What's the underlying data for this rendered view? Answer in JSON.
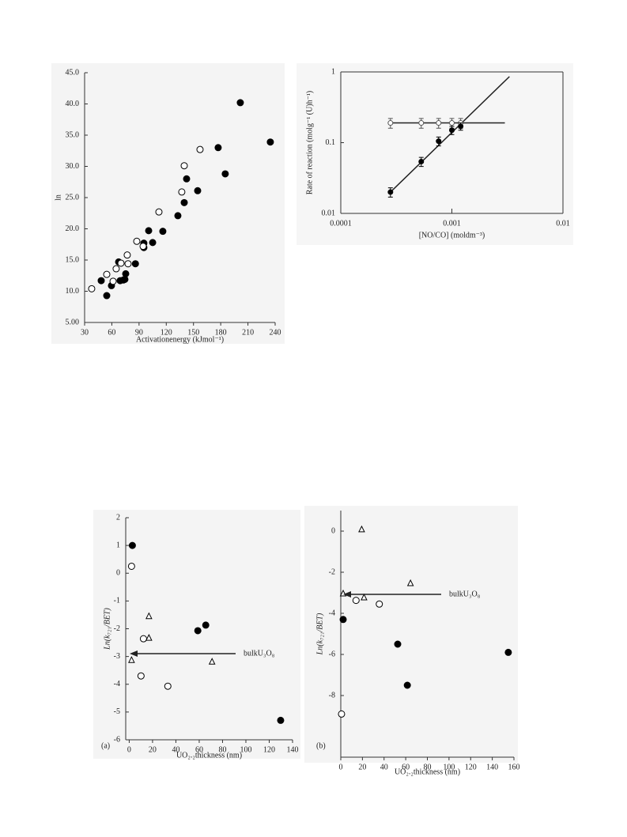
{
  "chart_data": [
    {
      "type": "scatter",
      "xlabel": "Activationenergy (kJmol⁻¹)",
      "ylabel": "ln",
      "xlim": [
        30,
        240
      ],
      "ylim": [
        5,
        45
      ],
      "xticks": [
        30,
        60,
        90,
        120,
        150,
        180,
        210,
        240
      ],
      "yticks": [
        {
          "value": 5,
          "label": "5.00"
        },
        {
          "value": 10,
          "label": "10.0"
        },
        {
          "value": 15,
          "label": "15.0"
        },
        {
          "value": 20,
          "label": "20.0"
        },
        {
          "value": 25,
          "label": "25.0"
        },
        {
          "value": 30,
          "label": "30.0"
        },
        {
          "value": 35,
          "label": "35.0"
        },
        {
          "value": 40,
          "label": "40.0"
        },
        {
          "value": 45,
          "label": "45.0"
        }
      ],
      "series": [
        {
          "marker": "circle-filled",
          "color": "#000000",
          "x": [
            48.3,
            54.4,
            59.6,
            67.5,
            69.2,
            72.7,
            74.4,
            75.3,
            86,
            95.3,
            95.3,
            100.6,
            105,
            116.2,
            132.8,
            139.8,
            142.4,
            154.6,
            177.2,
            185,
            201.6,
            234.7
          ],
          "values": [
            11.7,
            9.3,
            10.9,
            14.7,
            11.7,
            11.8,
            11.9,
            12.8,
            14.4,
            17.7,
            17,
            19.7,
            17.8,
            19.6,
            22.1,
            24.2,
            28,
            26.1,
            33,
            28.8,
            40.2,
            33.9
          ]
        },
        {
          "marker": "circle-open",
          "color": "#000000",
          "x": [
            37.8,
            54.4,
            61.4,
            64.8,
            70.1,
            77,
            77.9,
            87.5,
            94.5,
            111.9,
            137.1,
            139.8,
            157.2
          ],
          "values": [
            10.4,
            12.7,
            11.6,
            13.6,
            14.5,
            15.8,
            14.4,
            18,
            17.2,
            22.7,
            25.9,
            30.1,
            32.7
          ]
        }
      ]
    },
    {
      "type": "scatter",
      "log": true,
      "frame": true,
      "xlabel": "[NO/CO] (moldm⁻³)",
      "ylabel": "Rate of reaction (molg⁻¹ (U)h⁻¹)",
      "xlim": [
        0.0001,
        0.01
      ],
      "ylim": [
        0.01,
        1
      ],
      "xticks": [
        0.0001,
        0.001,
        0.01
      ],
      "yticks": [
        0.01,
        0.1,
        1
      ],
      "series": [
        {
          "marker": "circle-open",
          "color": "#555555",
          "x": [
            0.00028,
            0.00053,
            0.00076,
            0.001,
            0.0012
          ],
          "values": [
            0.19,
            0.19,
            0.19,
            0.19,
            0.19
          ],
          "errors": [
            0.03,
            0.03,
            0.03,
            0.03,
            0.03
          ]
        },
        {
          "marker": "circle-filled",
          "color": "#000000",
          "x": [
            0.00028,
            0.00053,
            0.00076,
            0.001,
            0.0012
          ],
          "values": [
            0.02,
            0.054,
            0.105,
            0.15,
            0.17
          ],
          "errors": [
            0.003,
            0.008,
            0.015,
            0.02,
            0.02
          ]
        }
      ],
      "lines": [
        {
          "x": [
            0.00028,
            0.003
          ],
          "values": [
            0.19,
            0.19
          ]
        },
        {
          "x": [
            0.00028,
            0.0033
          ],
          "values": [
            0.02,
            0.86
          ]
        }
      ]
    },
    {
      "type": "scatter",
      "panel_label": "(a)",
      "xlabel": "UO₂.₂thickness (nm)",
      "ylabel": "Ln(k₇₂₁/BET)",
      "annotation": "bulkU₃O₈",
      "xlim": [
        -3,
        140
      ],
      "ylim": [
        -6,
        2
      ],
      "xticks": [
        0,
        20,
        40,
        60,
        80,
        100,
        120,
        140
      ],
      "yticks": [
        -6,
        -5,
        -4,
        -3,
        -2,
        -1,
        0,
        1,
        2
      ],
      "series": [
        {
          "marker": "circle-filled",
          "color": "#000000",
          "x": [
            2.7,
            58.8,
            65.6,
            129.8
          ],
          "values": [
            1,
            -2.07,
            -1.87,
            -5.3
          ]
        },
        {
          "marker": "circle-open",
          "color": "#000000",
          "x": [
            2,
            12.2,
            10.1,
            33.1
          ],
          "values": [
            0.25,
            -2.36,
            -3.7,
            -4.07
          ]
        },
        {
          "marker": "triangle-open",
          "color": "#000000",
          "x": [
            16.9,
            16.9,
            2,
            71
          ],
          "values": [
            -1.55,
            -2.33,
            -3.13,
            -3.19
          ]
        }
      ]
    },
    {
      "type": "scatter",
      "panel_label": "(b)",
      "xlabel": "UO₂.₂thickness (nm)",
      "ylabel": "Ln(k₇₂₁/BET)",
      "annotation": "bulkU₃O₈",
      "xlim": [
        0,
        160
      ],
      "ylim": [
        -11,
        1
      ],
      "xticks": [
        0,
        20,
        40,
        60,
        80,
        100,
        120,
        140,
        160
      ],
      "yticks": [
        -8,
        -6,
        -4,
        -2,
        0
      ],
      "series": [
        {
          "marker": "circle-filled",
          "color": "#000000",
          "x": [
            2.2,
            52.6,
            61.5,
            154.8
          ],
          "values": [
            -4.3,
            -5.5,
            -7.5,
            -5.9
          ]
        },
        {
          "marker": "circle-open",
          "color": "#000000",
          "x": [
            0.7,
            14.1,
            35.6
          ],
          "values": [
            -8.9,
            -3.37,
            -3.55
          ]
        },
        {
          "marker": "triangle-open",
          "color": "#000000",
          "x": [
            2.2,
            19.3,
            21.5,
            64.4
          ],
          "values": [
            -3.04,
            0.08,
            -3.23,
            -2.54
          ]
        }
      ]
    }
  ]
}
